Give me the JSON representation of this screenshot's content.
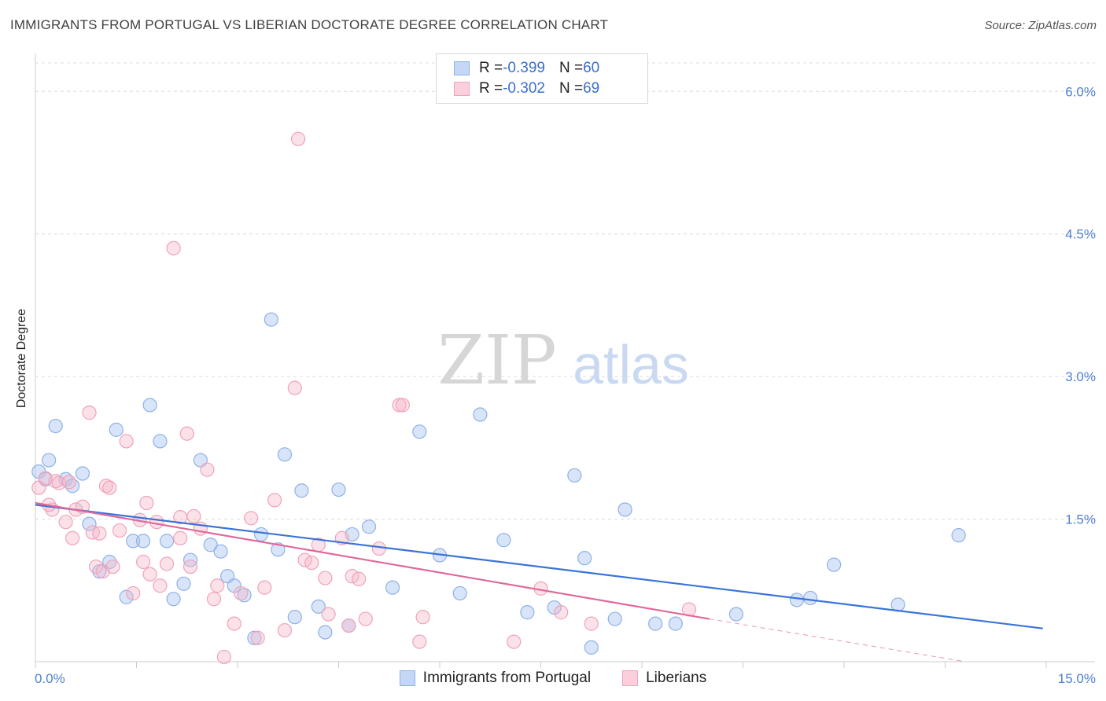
{
  "header": {
    "title": "IMMIGRANTS FROM PORTUGAL VS LIBERIAN DOCTORATE DEGREE CORRELATION CHART",
    "source": "Source: ZipAtlas.com"
  },
  "watermark": {
    "zip": "ZIP",
    "atlas": "atlas"
  },
  "legend_box": {
    "rows": [
      {
        "r_label": "R = ",
        "r_value": "-0.399",
        "n_label": "N = ",
        "n_value": "60",
        "color": "#a9c6f0"
      },
      {
        "r_label": "R = ",
        "r_value": "-0.302",
        "n_label": "N = ",
        "n_value": "69",
        "color": "#f6b7c8"
      }
    ]
  },
  "bottom_legend": {
    "items": [
      {
        "label": "Immigrants from Portugal",
        "color": "#a9c6f0"
      },
      {
        "label": "Liberians",
        "color": "#f6b7c8"
      }
    ]
  },
  "chart_data": {
    "type": "scatter",
    "title": "IMMIGRANTS FROM PORTUGAL VS LIBERIAN DOCTORATE DEGREE CORRELATION CHART",
    "xlabel": "",
    "ylabel": "Doctorate Degree",
    "xlim": [
      0,
      15
    ],
    "ylim": [
      0,
      6.3
    ],
    "x_tick_labels": [
      "0.0%",
      "15.0%"
    ],
    "y_ticks": [
      1.5,
      3.0,
      4.5,
      6.0
    ],
    "y_tick_labels": [
      "1.5%",
      "3.0%",
      "4.5%",
      "6.0%"
    ],
    "grid": true,
    "colors": {
      "portugal": "#3a74d8",
      "liberians": "#e0689a"
    },
    "series": [
      {
        "name": "Immigrants from Portugal",
        "color": "#3a74d8",
        "trend": {
          "x": [
            0,
            14.95
          ],
          "y": [
            1.65,
            0.35
          ]
        },
        "points": [
          [
            0.05,
            2.0
          ],
          [
            0.2,
            2.12
          ],
          [
            0.3,
            2.48
          ],
          [
            0.45,
            1.92
          ],
          [
            0.55,
            1.85
          ],
          [
            0.7,
            1.98
          ],
          [
            0.8,
            1.45
          ],
          [
            0.95,
            0.95
          ],
          [
            1.1,
            1.05
          ],
          [
            1.2,
            2.44
          ],
          [
            1.35,
            0.68
          ],
          [
            1.45,
            1.27
          ],
          [
            1.6,
            1.27
          ],
          [
            1.7,
            2.7
          ],
          [
            1.85,
            2.32
          ],
          [
            1.95,
            1.27
          ],
          [
            2.05,
            0.66
          ],
          [
            2.2,
            0.82
          ],
          [
            2.3,
            1.07
          ],
          [
            2.45,
            2.12
          ],
          [
            2.6,
            1.23
          ],
          [
            2.75,
            1.16
          ],
          [
            2.85,
            0.9
          ],
          [
            2.95,
            0.8
          ],
          [
            3.1,
            0.7
          ],
          [
            3.25,
            0.25
          ],
          [
            3.35,
            1.34
          ],
          [
            3.5,
            3.6
          ],
          [
            3.6,
            1.18
          ],
          [
            3.7,
            2.18
          ],
          [
            3.85,
            0.47
          ],
          [
            3.95,
            1.8
          ],
          [
            4.2,
            0.58
          ],
          [
            4.3,
            0.31
          ],
          [
            4.5,
            1.81
          ],
          [
            4.65,
            0.38
          ],
          [
            4.7,
            1.34
          ],
          [
            4.95,
            1.42
          ],
          [
            5.3,
            0.78
          ],
          [
            5.7,
            2.42
          ],
          [
            6.0,
            1.12
          ],
          [
            6.3,
            0.72
          ],
          [
            6.6,
            2.6
          ],
          [
            6.95,
            1.28
          ],
          [
            7.3,
            0.52
          ],
          [
            7.7,
            0.57
          ],
          [
            8.0,
            1.96
          ],
          [
            8.15,
            1.09
          ],
          [
            8.25,
            0.15
          ],
          [
            8.6,
            0.45
          ],
          [
            8.75,
            1.6
          ],
          [
            9.2,
            0.4
          ],
          [
            9.5,
            0.4
          ],
          [
            10.4,
            0.5
          ],
          [
            11.3,
            0.65
          ],
          [
            11.5,
            0.67
          ],
          [
            11.85,
            1.02
          ],
          [
            12.8,
            0.6
          ],
          [
            13.7,
            1.33
          ],
          [
            0.15,
            1.92
          ]
        ]
      },
      {
        "name": "Liberians",
        "color": "#e0689a",
        "trend": {
          "x": [
            0,
            10.0
          ],
          "y": [
            1.67,
            0.45
          ]
        },
        "trend_dashed": {
          "x": [
            10.0,
            13.8
          ],
          "y": [
            0.45,
            0.0
          ]
        },
        "points": [
          [
            0.05,
            1.83
          ],
          [
            0.15,
            1.93
          ],
          [
            0.25,
            1.6
          ],
          [
            0.35,
            1.88
          ],
          [
            0.45,
            1.47
          ],
          [
            0.55,
            1.3
          ],
          [
            0.6,
            1.6
          ],
          [
            0.7,
            1.63
          ],
          [
            0.8,
            2.62
          ],
          [
            0.85,
            1.36
          ],
          [
            0.9,
            1.0
          ],
          [
            1.0,
            0.95
          ],
          [
            1.05,
            1.85
          ],
          [
            1.1,
            1.83
          ],
          [
            1.15,
            1.0
          ],
          [
            1.25,
            1.38
          ],
          [
            1.35,
            2.32
          ],
          [
            1.45,
            0.72
          ],
          [
            1.55,
            1.49
          ],
          [
            1.65,
            1.67
          ],
          [
            1.7,
            0.92
          ],
          [
            1.8,
            1.47
          ],
          [
            1.85,
            0.8
          ],
          [
            1.95,
            1.03
          ],
          [
            2.05,
            4.35
          ],
          [
            2.15,
            1.3
          ],
          [
            2.25,
            2.4
          ],
          [
            2.3,
            1.0
          ],
          [
            2.35,
            1.53
          ],
          [
            2.45,
            1.4
          ],
          [
            2.55,
            2.02
          ],
          [
            2.65,
            0.66
          ],
          [
            2.7,
            0.8
          ],
          [
            2.8,
            0.05
          ],
          [
            2.95,
            0.4
          ],
          [
            3.05,
            0.72
          ],
          [
            3.2,
            1.51
          ],
          [
            3.3,
            0.25
          ],
          [
            3.4,
            0.78
          ],
          [
            3.55,
            1.7
          ],
          [
            3.7,
            0.33
          ],
          [
            3.85,
            2.88
          ],
          [
            3.9,
            5.5
          ],
          [
            4.0,
            1.07
          ],
          [
            4.1,
            1.04
          ],
          [
            4.2,
            1.23
          ],
          [
            4.3,
            0.88
          ],
          [
            4.35,
            0.5
          ],
          [
            4.55,
            1.3
          ],
          [
            4.65,
            0.38
          ],
          [
            4.7,
            0.9
          ],
          [
            4.8,
            0.87
          ],
          [
            4.9,
            0.45
          ],
          [
            5.1,
            1.19
          ],
          [
            5.4,
            2.7
          ],
          [
            5.45,
            2.7
          ],
          [
            5.7,
            0.21
          ],
          [
            5.75,
            0.47
          ],
          [
            7.1,
            0.21
          ],
          [
            7.5,
            0.77
          ],
          [
            7.8,
            0.52
          ],
          [
            8.25,
            0.4
          ],
          [
            9.7,
            0.55
          ],
          [
            0.2,
            1.65
          ],
          [
            0.5,
            1.89
          ],
          [
            0.3,
            1.9
          ],
          [
            0.95,
            1.35
          ],
          [
            1.6,
            1.05
          ],
          [
            2.15,
            1.52
          ]
        ]
      }
    ]
  }
}
